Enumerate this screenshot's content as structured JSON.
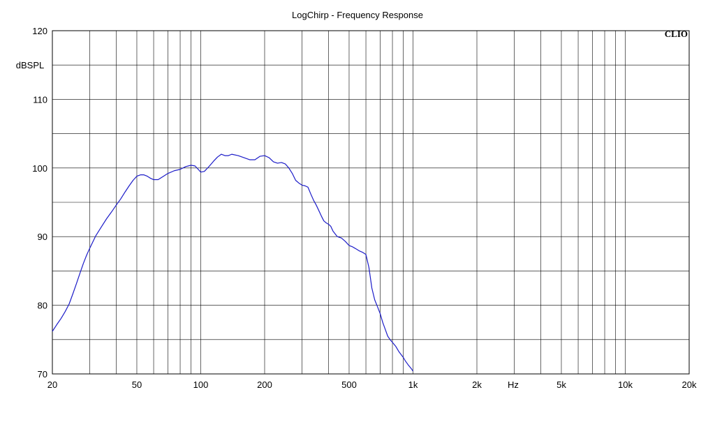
{
  "chart_data": {
    "type": "line",
    "title": "LogChirp - Frequency Response",
    "brand": "CLIO",
    "xlabel": "Hz",
    "ylabel": "dBSPL",
    "x_scale": "log",
    "xlim": [
      20,
      20000
    ],
    "ylim": [
      70,
      120
    ],
    "grid": true,
    "x_ticks": [
      {
        "value": 20,
        "label": "20"
      },
      {
        "value": 50,
        "label": "50"
      },
      {
        "value": 100,
        "label": "100"
      },
      {
        "value": 200,
        "label": "200"
      },
      {
        "value": 500,
        "label": "500"
      },
      {
        "value": 1000,
        "label": "1k"
      },
      {
        "value": 2000,
        "label": "2k"
      },
      {
        "value": 5000,
        "label": "5k"
      },
      {
        "value": 10000,
        "label": "10k"
      },
      {
        "value": 20000,
        "label": "20k"
      }
    ],
    "y_ticks": [
      {
        "value": 70,
        "label": "70"
      },
      {
        "value": 80,
        "label": "80"
      },
      {
        "value": 90,
        "label": "90"
      },
      {
        "value": 100,
        "label": "100"
      },
      {
        "value": 110,
        "label": "110"
      },
      {
        "value": 120,
        "label": "120"
      }
    ],
    "x_grid": [
      20,
      30,
      40,
      50,
      60,
      70,
      80,
      90,
      100,
      200,
      300,
      400,
      500,
      600,
      700,
      800,
      900,
      1000,
      2000,
      3000,
      4000,
      5000,
      6000,
      7000,
      8000,
      9000,
      10000,
      20000
    ],
    "y_grid": [
      70,
      75,
      80,
      85,
      90,
      95,
      100,
      105,
      110,
      115,
      120
    ],
    "colors": {
      "series": "#1c1cc8",
      "grid": "#000000",
      "axes": "#000000"
    },
    "series": [
      {
        "x": [
          20,
          21,
          22,
          23,
          24,
          25,
          26,
          27,
          28,
          29,
          30,
          32,
          34,
          36,
          38,
          40,
          42,
          44,
          46,
          48,
          50,
          52,
          54,
          56,
          58,
          60,
          63,
          66,
          70,
          75,
          80,
          85,
          90,
          94,
          98,
          100,
          104,
          110,
          115,
          120,
          125,
          130,
          135,
          140,
          150,
          160,
          170,
          180,
          190,
          200,
          210,
          220,
          230,
          240,
          250,
          260,
          270,
          280,
          290,
          300,
          310,
          320,
          330,
          340,
          350,
          360,
          370,
          380,
          390,
          400,
          410,
          420,
          440,
          460,
          480,
          500,
          520,
          540,
          560,
          580,
          600,
          620,
          640,
          660,
          680,
          700,
          720,
          740,
          760,
          780,
          800,
          830,
          860,
          880,
          900,
          920,
          950,
          980,
          1000
        ],
        "values": [
          76.2,
          77.2,
          78.1,
          79.1,
          80.2,
          81.7,
          83.2,
          84.7,
          86.1,
          87.3,
          88.3,
          90.1,
          91.4,
          92.6,
          93.6,
          94.6,
          95.5,
          96.5,
          97.4,
          98.2,
          98.8,
          99.0,
          99.0,
          98.8,
          98.5,
          98.3,
          98.3,
          98.7,
          99.2,
          99.6,
          99.8,
          100.2,
          100.4,
          100.3,
          99.7,
          99.4,
          99.5,
          100.3,
          101.0,
          101.6,
          102.0,
          101.8,
          101.8,
          102.0,
          101.8,
          101.5,
          101.2,
          101.2,
          101.7,
          101.8,
          101.5,
          100.9,
          100.7,
          100.8,
          100.6,
          100.0,
          99.2,
          98.2,
          97.8,
          97.5,
          97.4,
          97.2,
          96.2,
          95.3,
          94.6,
          93.8,
          93.0,
          92.3,
          92.0,
          91.8,
          91.5,
          90.8,
          90.0,
          89.8,
          89.3,
          88.7,
          88.5,
          88.2,
          87.9,
          87.7,
          87.4,
          85.5,
          82.5,
          80.8,
          79.8,
          78.8,
          77.5,
          76.5,
          75.5,
          75.0,
          74.6,
          74.0,
          73.2,
          72.8,
          72.4,
          71.9,
          71.3,
          70.8,
          70.4
        ]
      }
    ]
  }
}
